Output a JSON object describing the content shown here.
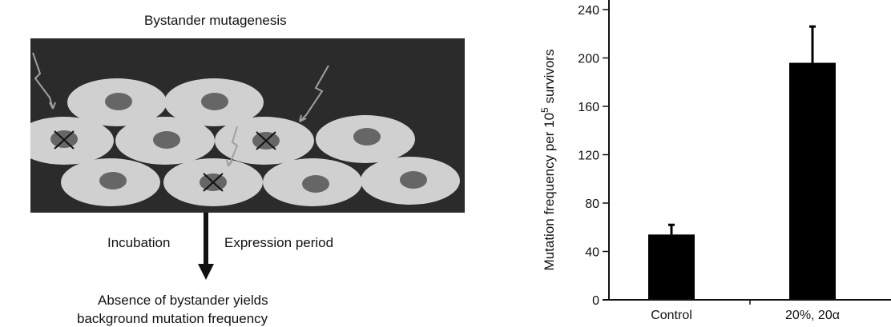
{
  "diagram": {
    "title": "Bystander mutagenesis",
    "incubation_label": "Incubation",
    "expression_label": "Expression period",
    "outcome_line1": "Absence of bystander yields",
    "outcome_line2": "background mutation frequency",
    "panel_color": "#2b2b2b",
    "cell_color": "#d0d0d0",
    "nucleus_color": "#666666",
    "arrow_color": "#a0a0a0"
  },
  "chart_data": {
    "type": "bar",
    "categories": [
      "Control",
      "20%, 20α"
    ],
    "values": [
      54,
      196
    ],
    "error_upper": [
      62,
      226
    ],
    "ylabel_main": "Mutation frequency per 10",
    "ylabel_sup": "5",
    "ylabel_tail": " survivors",
    "ylim": [
      0,
      240
    ],
    "yticks": [
      0,
      40,
      80,
      120,
      160,
      200,
      240
    ],
    "bar_color": "#000000"
  }
}
